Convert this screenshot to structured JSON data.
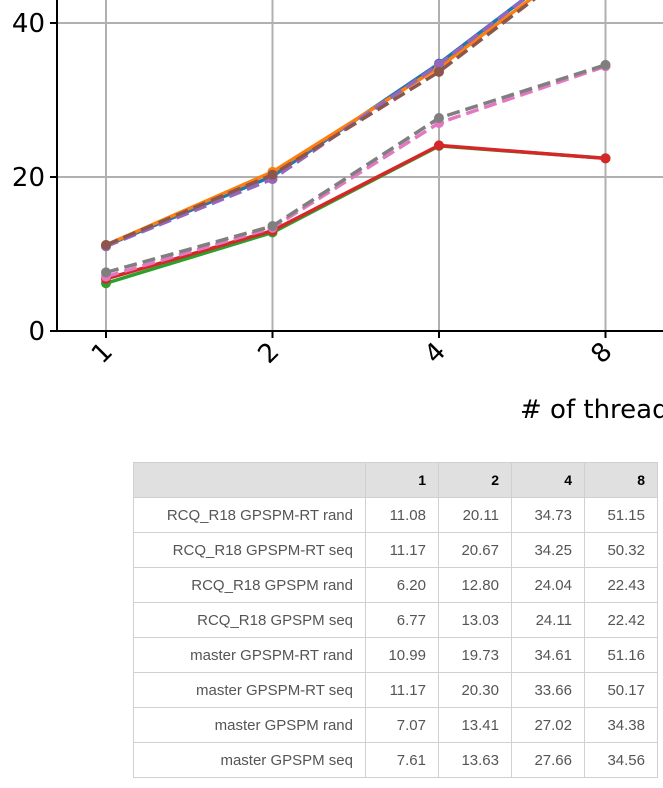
{
  "chart_data": {
    "type": "line",
    "x_label": "# of threads",
    "categories": [
      "1",
      "2",
      "4",
      "8"
    ],
    "ylim": [
      0,
      55
    ],
    "yticks": [
      0,
      20,
      40
    ],
    "grid": true,
    "series": [
      {
        "name": "RCQ_R18 GPSPM-RT rand",
        "color": "#1f77b4",
        "linestyle": "solid",
        "values": [
          11.08,
          20.11,
          34.73,
          51.15
        ],
        "value_labels": [
          "11.08",
          "20.11",
          "34.73",
          "51.15"
        ]
      },
      {
        "name": "RCQ_R18 GPSPM-RT seq",
        "color": "#ff7f0e",
        "linestyle": "solid",
        "values": [
          11.17,
          20.67,
          34.25,
          50.32
        ],
        "value_labels": [
          "11.17",
          "20.67",
          "34.25",
          "50.32"
        ]
      },
      {
        "name": "RCQ_R18 GPSPM rand",
        "color": "#2ca02c",
        "linestyle": "solid",
        "values": [
          6.2,
          12.8,
          24.04,
          22.43
        ],
        "value_labels": [
          "6.20",
          "12.80",
          "24.04",
          "22.43"
        ]
      },
      {
        "name": "RCQ_R18 GPSPM seq",
        "color": "#d62728",
        "linestyle": "solid",
        "values": [
          6.77,
          13.03,
          24.11,
          22.42
        ],
        "value_labels": [
          "6.77",
          "13.03",
          "24.11",
          "22.42"
        ]
      },
      {
        "name": "master GPSPM-RT rand",
        "color": "#9467bd",
        "linestyle": "dashed",
        "values": [
          10.99,
          19.73,
          34.61,
          51.16
        ],
        "value_labels": [
          "10.99",
          "19.73",
          "34.61",
          "51.16"
        ]
      },
      {
        "name": "master GPSPM-RT seq",
        "color": "#8c564b",
        "linestyle": "dashed",
        "values": [
          11.17,
          20.3,
          33.66,
          50.17
        ],
        "value_labels": [
          "11.17",
          "20.30",
          "33.66",
          "50.17"
        ]
      },
      {
        "name": "master GPSPM rand",
        "color": "#e377c2",
        "linestyle": "dashed",
        "values": [
          7.07,
          13.41,
          27.02,
          34.38
        ],
        "value_labels": [
          "7.07",
          "13.41",
          "27.02",
          "34.38"
        ]
      },
      {
        "name": "master GPSPM seq",
        "color": "#7f7f7f",
        "linestyle": "dashed",
        "values": [
          7.61,
          13.63,
          27.66,
          34.56
        ],
        "value_labels": [
          "7.61",
          "13.63",
          "27.66",
          "34.56"
        ]
      }
    ]
  }
}
